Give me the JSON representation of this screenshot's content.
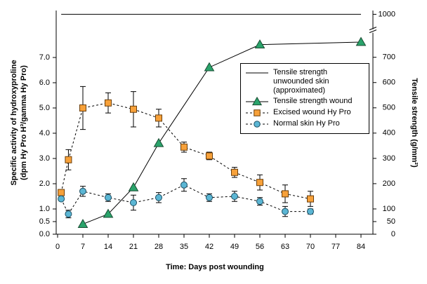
{
  "chart_data": {
    "type": "line",
    "xlabel": "Time: Days post wounding",
    "ylabel": [
      "Specific activity of hydroxyproline",
      "(dpm Hy Pro H³/gamma Hy Pro)"
    ],
    "y2label": "Tensile strength (g/mm²)",
    "xlim": [
      0,
      84
    ],
    "xticks": [
      0,
      7,
      14,
      21,
      28,
      35,
      42,
      49,
      56,
      63,
      70,
      77,
      84
    ],
    "ylim": [
      0,
      8.86
    ],
    "yticks": [
      {
        "value": 0,
        "label": "0.0"
      },
      0.5,
      {
        "value": 1,
        "label": "1.0"
      },
      {
        "value": 2,
        "label": "2.0"
      },
      {
        "value": 3,
        "label": "3.0"
      },
      {
        "value": 4,
        "label": "4.0"
      },
      {
        "value": 5,
        "label": "5.0"
      },
      {
        "value": 6,
        "label": "6.0"
      },
      {
        "value": 7,
        "label": "7.0"
      }
    ],
    "y2lim": [
      0,
      1015
    ],
    "y2break": [
      800,
      930
    ],
    "y2ticks": [
      0,
      50,
      100,
      200,
      300,
      400,
      500,
      600,
      700,
      1000
    ],
    "legend": "upper right",
    "series": [
      {
        "name": "Tensile strength unwounded skin (approximated)",
        "color": "#000000",
        "axis": "y2",
        "marker": "none",
        "dash": false,
        "x": [
          1,
          84
        ],
        "values": [
          1000,
          1000
        ]
      },
      {
        "name": "Tensile strength wound",
        "color": "#2aa36b",
        "axis": "y2",
        "marker": "triangle",
        "dash": false,
        "x": [
          7,
          14,
          21,
          28,
          42,
          56,
          84
        ],
        "values": [
          40,
          80,
          185,
          360,
          660,
          750,
          760
        ]
      },
      {
        "name": "Excised wound Hy Pro",
        "color": "#f7a13a",
        "marker": "square",
        "dash": true,
        "x": [
          1,
          3,
          7,
          14,
          21,
          28,
          35,
          42,
          49,
          56,
          63,
          70
        ],
        "values": [
          1.65,
          2.95,
          5.0,
          5.2,
          4.95,
          4.6,
          3.45,
          3.1,
          2.45,
          2.05,
          1.6,
          1.4
        ],
        "errors": [
          null,
          0.4,
          0.85,
          0.4,
          0.7,
          0.35,
          0.2,
          0.15,
          0.2,
          0.3,
          0.35,
          0.3
        ]
      },
      {
        "name": "Normal skin Hy Pro",
        "color": "#5bb6d4",
        "marker": "circle",
        "dash": true,
        "x": [
          1,
          3,
          7,
          14,
          21,
          28,
          35,
          42,
          49,
          56,
          63,
          70
        ],
        "values": [
          1.4,
          0.8,
          1.7,
          1.45,
          1.25,
          1.45,
          1.95,
          1.45,
          1.5,
          1.3,
          0.9,
          0.9
        ],
        "errors": [
          null,
          0.15,
          0.2,
          0.15,
          0.3,
          0.2,
          0.25,
          0.15,
          0.2,
          0.15,
          0.2,
          0.1
        ]
      }
    ]
  }
}
